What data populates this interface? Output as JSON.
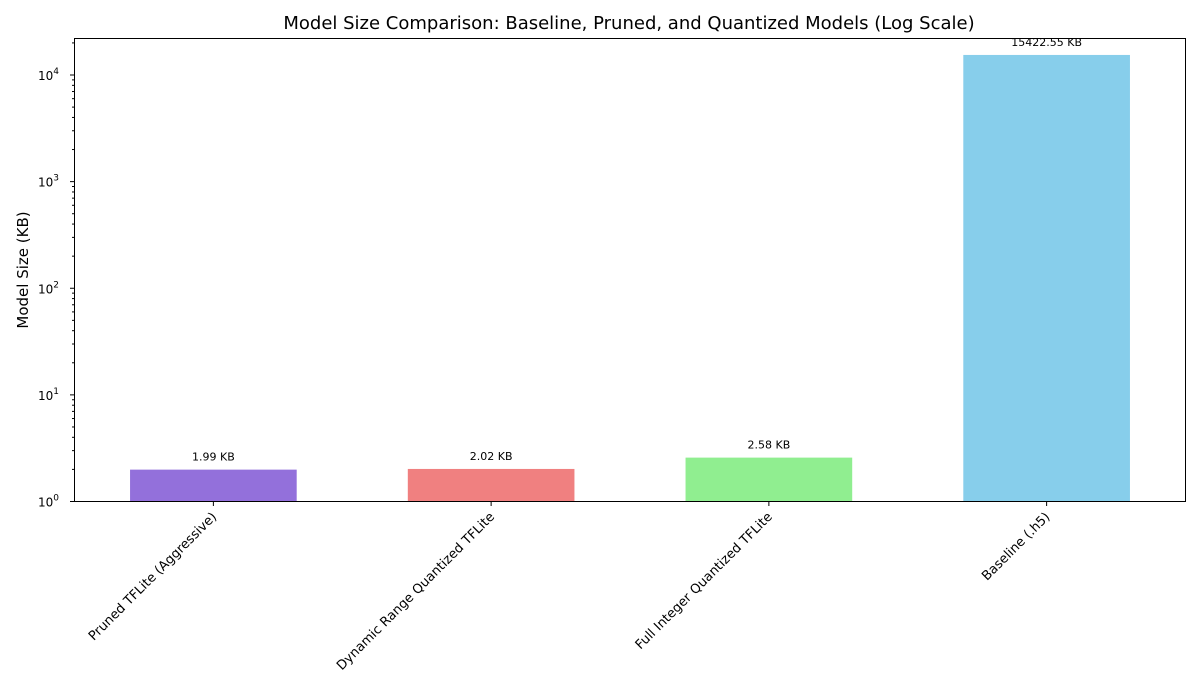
{
  "chart_data": {
    "type": "bar",
    "title": "Model Size Comparison: Baseline, Pruned, and Quantized Models (Log Scale)",
    "xlabel": "",
    "ylabel": "Model Size (KB)",
    "yscale": "log",
    "ylim": [
      1,
      22000
    ],
    "grid": false,
    "categories": [
      "Pruned TFLite (Aggressive)",
      "Dynamic Range Quantized TFLite",
      "Full Integer Quantized TFLite",
      "Baseline (.h5)"
    ],
    "values": [
      1.99,
      2.02,
      2.58,
      15422.55
    ],
    "data_labels": [
      "1.99 KB",
      "2.02 KB",
      "2.58 KB",
      "15422.55 KB"
    ],
    "colors": [
      "#9370db",
      "#f08080",
      "#90ee90",
      "#87ceeb"
    ],
    "y_ticks": [
      {
        "value": 1,
        "base": "10",
        "exp": "0"
      },
      {
        "value": 10,
        "base": "10",
        "exp": "1"
      },
      {
        "value": 100,
        "base": "10",
        "exp": "2"
      },
      {
        "value": 1000,
        "base": "10",
        "exp": "3"
      },
      {
        "value": 10000,
        "base": "10",
        "exp": "4"
      }
    ]
  }
}
